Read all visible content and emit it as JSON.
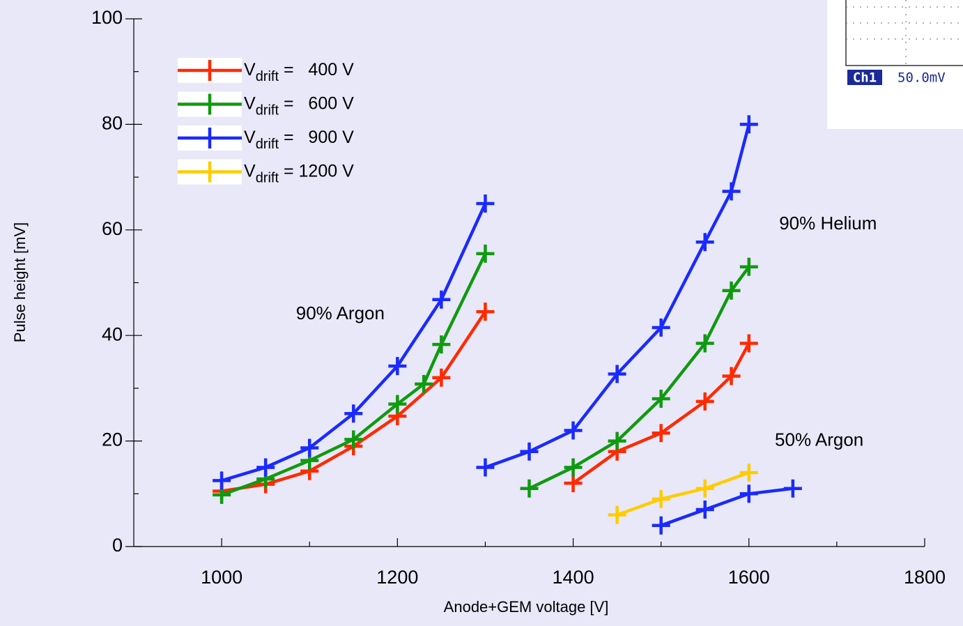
{
  "chart_data": {
    "type": "line",
    "xlabel": "Anode+GEM voltage [V]",
    "ylabel": "Pulse height [mV]",
    "xlim": [
      900,
      1800
    ],
    "xticks": [
      1000,
      1200,
      1400,
      1600,
      1800
    ],
    "xminorticks": [
      1100,
      1300,
      1500,
      1700
    ],
    "ylim": [
      0,
      100
    ],
    "yticks": [
      0,
      20,
      40,
      60,
      80,
      100
    ],
    "yminorticks": [
      10,
      30,
      50,
      70,
      90
    ],
    "legend": "upper left",
    "annotations": [
      {
        "text": "90%  Argon",
        "x": 1135,
        "y": 44
      },
      {
        "text": "90% Helium",
        "x": 1690,
        "y": 61
      },
      {
        "text": "50% Argon",
        "x": 1680,
        "y": 20
      }
    ],
    "inset": {
      "channel": "Ch1",
      "scale": "50.0mV"
    },
    "series": [
      {
        "name": "Vdrift =   400 V",
        "color": "#ff2a00",
        "x": [
          1000,
          1050,
          1100,
          1150,
          1200,
          1250,
          1300,
          null,
          1400,
          1450,
          1500,
          1550,
          1580,
          1600
        ],
        "values": [
          10.5,
          11.8,
          14.3,
          19,
          24.7,
          32,
          44.5,
          null,
          12,
          18,
          21.5,
          27.5,
          32.3,
          38.5
        ]
      },
      {
        "name": "Vdrift =   600 V",
        "color": "#109a10",
        "x": [
          1000,
          1050,
          1100,
          1150,
          1200,
          1230,
          1250,
          1300,
          null,
          1350,
          1400,
          1450,
          1500,
          1550,
          1580,
          1600
        ],
        "values": [
          9.8,
          12.8,
          16.3,
          20.3,
          27,
          30.8,
          38.3,
          55.5,
          null,
          11,
          15,
          20,
          28,
          38.5,
          48.5,
          53
        ]
      },
      {
        "name": "Vdrift =   900 V",
        "color": "#1a2aff",
        "x": [
          1000,
          1050,
          1100,
          1150,
          1200,
          1250,
          1300,
          null,
          1300,
          1350,
          1400,
          1450,
          1500,
          1550,
          1580,
          1600,
          null,
          1500,
          1550,
          1600,
          1650
        ],
        "values": [
          12.5,
          15,
          18.7,
          25.2,
          34.2,
          46.8,
          65,
          null,
          15,
          18,
          22,
          32.7,
          41.5,
          57.7,
          67.3,
          80,
          null,
          4,
          7,
          10,
          11
        ]
      },
      {
        "name": "Vdrift = 1200 V",
        "color": "#ffcc00",
        "x": [
          1450,
          1500,
          1550,
          1600
        ],
        "values": [
          6,
          9,
          11,
          14
        ]
      }
    ]
  }
}
